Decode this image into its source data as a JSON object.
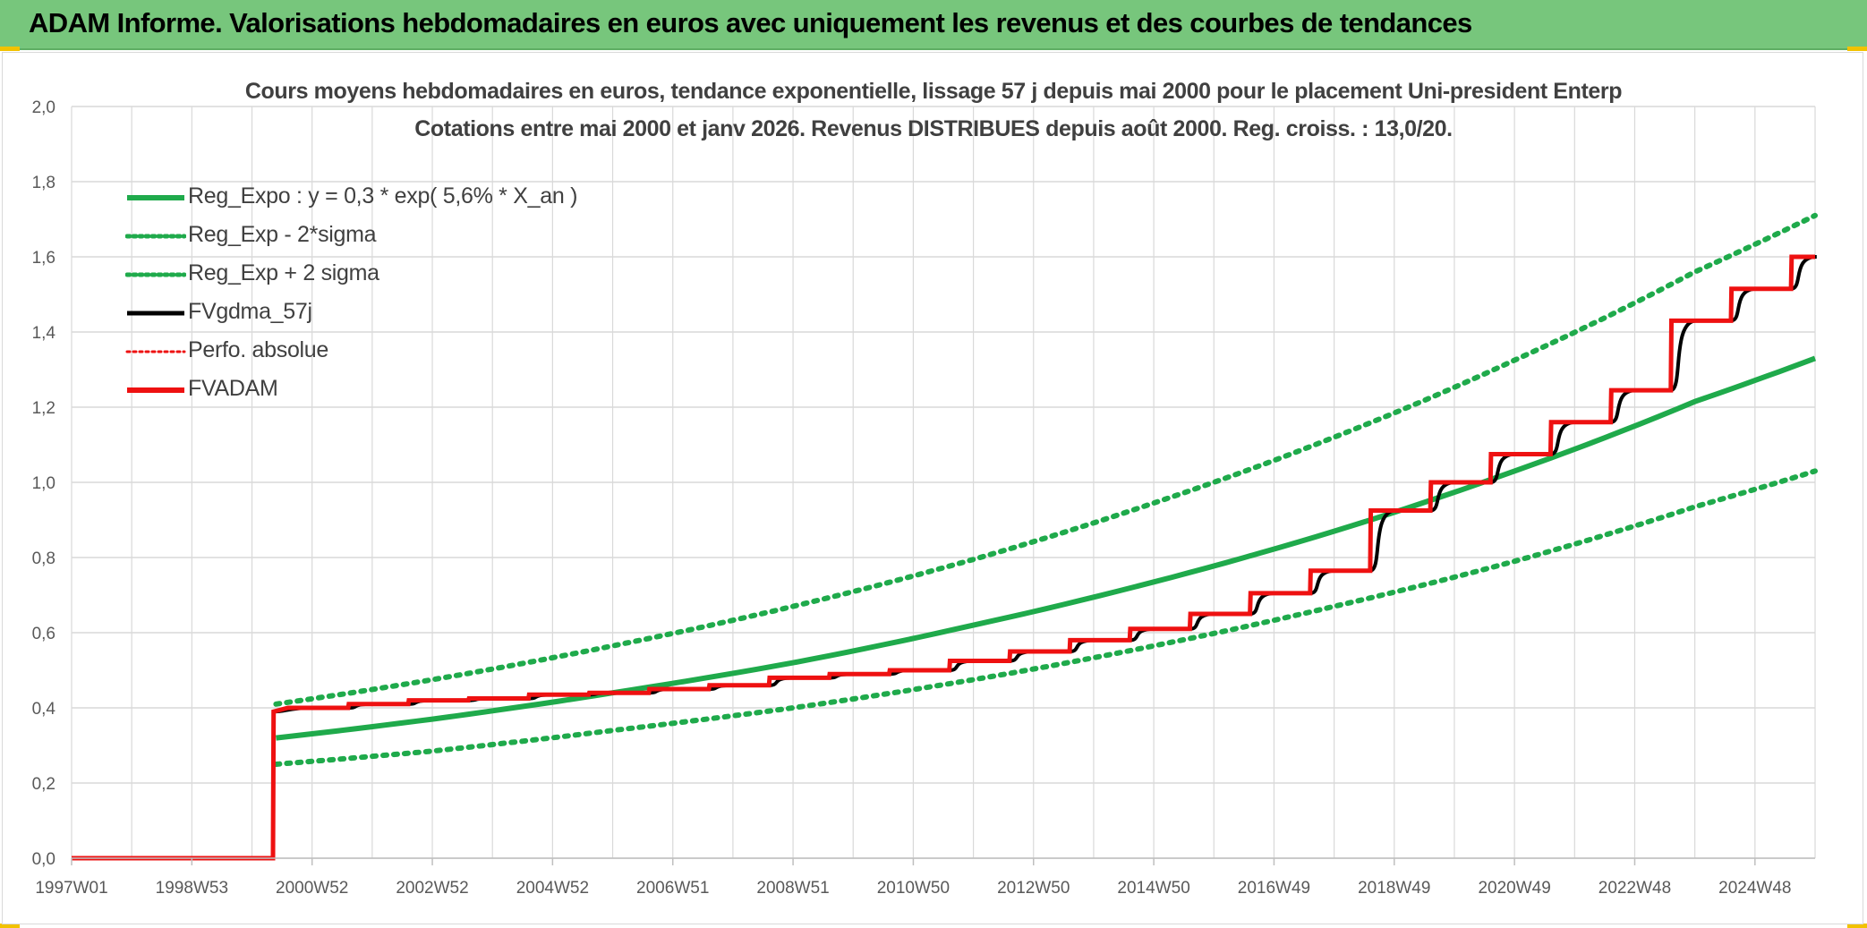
{
  "header": {
    "title": "ADAM Informe. Valorisations hebdomadaires en euros avec uniquement les revenus et des courbes de tendances"
  },
  "colors": {
    "header_bg": "#77c67c",
    "trend_green": "#1faa4b",
    "fv_black": "#000000",
    "fvadam_red": "#ee1111",
    "grid": "#d9d9d9"
  },
  "chart_data": {
    "type": "line",
    "title_line1": "Cours moyens hebdomadaires en euros, tendance exponentielle, lissage 57 j depuis mai 2000 pour le placement Uni-president Enterp",
    "title_line2": "Cotations entre mai 2000 et janv 2026. Revenus DISTRIBUES depuis août 2000. Reg. croiss. : 13,0/20.",
    "ylim": [
      0,
      2.0
    ],
    "ytick_labels": [
      "0,0",
      "0,2",
      "0,4",
      "0,6",
      "0,8",
      "1,0",
      "1,2",
      "1,4",
      "1,6",
      "1,8",
      "2,0"
    ],
    "xlim": [
      1997.0,
      2026.0
    ],
    "xtick_labels": [
      "1997W01",
      "1998W53",
      "2000W52",
      "2002W52",
      "2004W52",
      "2006W51",
      "2008W51",
      "2010W50",
      "2012W50",
      "2014W50",
      "2016W49",
      "2018W49",
      "2020W49",
      "2022W48",
      "2024W48"
    ],
    "grid": true,
    "legend_position": "top-left",
    "legend": [
      {
        "label": "Reg_Expo : y = 0,3 * exp( 5,6% *  X_an )",
        "style": "solid",
        "color": "#1faa4b"
      },
      {
        "label": "Reg_Exp - 2*sigma",
        "style": "dotted",
        "color": "#1faa4b"
      },
      {
        "label": "Reg_Exp + 2 sigma",
        "style": "dotted",
        "color": "#1faa4b"
      },
      {
        "label": "FVgdma_57j",
        "style": "solid",
        "color": "#000000"
      },
      {
        "label": "Perfo. absolue",
        "style": "dotted",
        "color": "#ee1111"
      },
      {
        "label": "FVADAM",
        "style": "solid",
        "color": "#ee1111"
      }
    ],
    "series": [
      {
        "name": "Reg_Expo : y = 0,3 * exp( 5,6% *  X_an )",
        "x": [
          2000.4,
          2003.0,
          2006.0,
          2009.0,
          2012.0,
          2015.0,
          2018.0,
          2021.0,
          2024.0,
          2026.0
        ],
        "values": [
          0.32,
          0.37,
          0.44,
          0.52,
          0.62,
          0.735,
          0.87,
          1.03,
          1.215,
          1.33
        ]
      },
      {
        "name": "Reg_Exp - 2*sigma",
        "x": [
          2000.4,
          2003.0,
          2006.0,
          2009.0,
          2012.0,
          2015.0,
          2018.0,
          2021.0,
          2024.0,
          2026.0
        ],
        "values": [
          0.25,
          0.285,
          0.34,
          0.4,
          0.475,
          0.565,
          0.67,
          0.79,
          0.935,
          1.03
        ]
      },
      {
        "name": "Reg_Exp + 2 sigma",
        "x": [
          2000.4,
          2003.0,
          2006.0,
          2009.0,
          2012.0,
          2015.0,
          2018.0,
          2021.0,
          2024.0,
          2026.0
        ],
        "values": [
          0.41,
          0.475,
          0.565,
          0.67,
          0.795,
          0.945,
          1.12,
          1.325,
          1.56,
          1.71
        ]
      },
      {
        "name": "FVADAM",
        "x": [
          1997.0,
          2000.35,
          2000.36,
          2000.6,
          2001.6,
          2001.61,
          2002.6,
          2002.61,
          2003.6,
          2003.61,
          2004.6,
          2004.61,
          2005.6,
          2005.61,
          2006.6,
          2006.61,
          2007.6,
          2007.61,
          2008.6,
          2008.61,
          2009.6,
          2009.61,
          2010.6,
          2010.61,
          2011.6,
          2011.61,
          2012.6,
          2012.61,
          2013.6,
          2013.61,
          2014.6,
          2014.61,
          2015.6,
          2015.61,
          2016.6,
          2016.61,
          2017.6,
          2017.61,
          2018.6,
          2018.61,
          2019.6,
          2019.61,
          2020.6,
          2020.61,
          2021.6,
          2021.61,
          2022.6,
          2022.61,
          2023.6,
          2023.61,
          2024.6,
          2024.61,
          2025.6,
          2025.61,
          2026.0
        ],
        "values": [
          0.0,
          0.0,
          0.39,
          0.4,
          0.4,
          0.41,
          0.41,
          0.42,
          0.42,
          0.425,
          0.425,
          0.435,
          0.435,
          0.44,
          0.44,
          0.45,
          0.45,
          0.46,
          0.46,
          0.48,
          0.48,
          0.49,
          0.49,
          0.5,
          0.5,
          0.525,
          0.525,
          0.55,
          0.55,
          0.58,
          0.58,
          0.61,
          0.61,
          0.65,
          0.65,
          0.705,
          0.705,
          0.765,
          0.765,
          0.925,
          0.925,
          1.0,
          1.0,
          1.075,
          1.075,
          1.16,
          1.16,
          1.245,
          1.245,
          1.43,
          1.43,
          1.515,
          1.515,
          1.6,
          1.6
        ]
      }
    ]
  }
}
